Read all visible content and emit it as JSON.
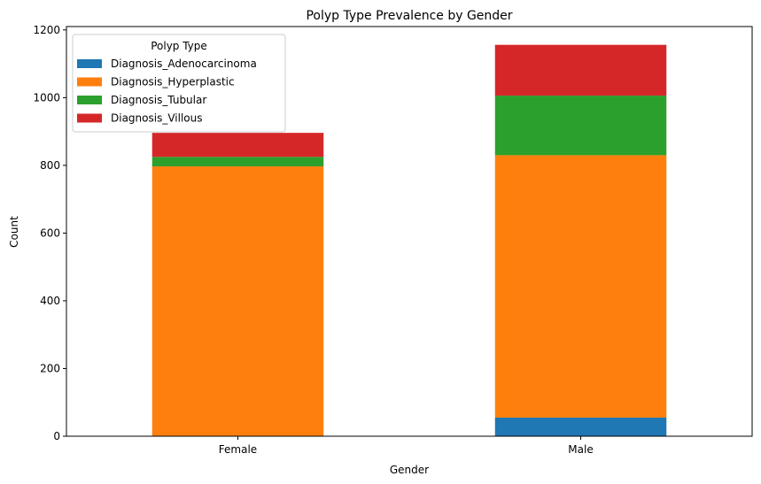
{
  "chart_data": {
    "type": "bar",
    "stacked": true,
    "title": "Polyp Type Prevalence by Gender",
    "xlabel": "Gender",
    "ylabel": "Count",
    "categories": [
      "Female",
      "Male"
    ],
    "ylim": [
      0,
      1210
    ],
    "yticks": [
      0,
      200,
      400,
      600,
      800,
      1000,
      1200
    ],
    "grid": false,
    "legend": {
      "title": "Polyp Type",
      "placement": "top-left"
    },
    "series": [
      {
        "name": "Diagnosis_Adenocarcinoma",
        "color": "#1f77b4",
        "values": [
          0,
          55
        ]
      },
      {
        "name": "Diagnosis_Hyperplastic",
        "color": "#ff7f0e",
        "values": [
          797,
          775
        ]
      },
      {
        "name": "Diagnosis_Tubular",
        "color": "#2ca02c",
        "values": [
          28,
          176
        ]
      },
      {
        "name": "Diagnosis_Villous",
        "color": "#d62728",
        "values": [
          71,
          150
        ]
      }
    ]
  }
}
